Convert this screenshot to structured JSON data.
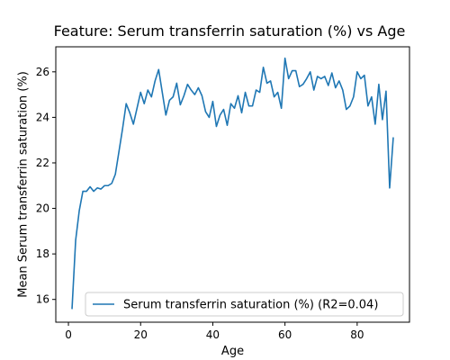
{
  "chart_data": {
    "type": "line",
    "title": "Feature: Serum transferrin saturation (%) vs Age",
    "xlabel": "Age",
    "ylabel": "Mean Serum transferrin saturation (%)",
    "xlim": [
      -3.5,
      94.5
    ],
    "ylim": [
      15.0,
      27.1
    ],
    "xticks": [
      0,
      20,
      40,
      60,
      80
    ],
    "xtick_labels": [
      "0",
      "20",
      "40",
      "60",
      "80"
    ],
    "yticks": [
      16,
      18,
      20,
      22,
      24,
      26
    ],
    "ytick_labels": [
      "16",
      "18",
      "20",
      "22",
      "24",
      "26"
    ],
    "grid": false,
    "legend_position": "lower-right",
    "series": [
      {
        "name": "Serum transferrin saturation (%) (R2=0.04)",
        "color": "#1f77b4",
        "x": [
          1,
          2,
          3,
          4,
          5,
          6,
          7,
          8,
          9,
          10,
          11,
          12,
          13,
          14,
          15,
          16,
          17,
          18,
          19,
          20,
          21,
          22,
          23,
          24,
          25,
          26,
          27,
          28,
          29,
          30,
          31,
          32,
          33,
          34,
          35,
          36,
          37,
          38,
          39,
          40,
          41,
          42,
          43,
          44,
          45,
          46,
          47,
          48,
          49,
          50,
          51,
          52,
          53,
          54,
          55,
          56,
          57,
          58,
          59,
          60,
          61,
          62,
          63,
          64,
          65,
          66,
          67,
          68,
          69,
          70,
          71,
          72,
          73,
          74,
          75,
          76,
          77,
          78,
          79,
          80,
          81,
          82,
          83,
          84,
          85,
          86,
          87,
          88,
          89,
          90
        ],
        "y": [
          15.6,
          18.6,
          19.9,
          20.75,
          20.75,
          20.95,
          20.75,
          20.9,
          20.85,
          21.0,
          21.0,
          21.1,
          21.5,
          22.5,
          23.5,
          24.6,
          24.2,
          23.7,
          24.4,
          25.1,
          24.6,
          25.2,
          24.9,
          25.6,
          26.1,
          25.1,
          24.1,
          24.75,
          24.9,
          25.5,
          24.55,
          24.95,
          25.45,
          25.2,
          25.0,
          25.3,
          24.95,
          24.25,
          24.0,
          24.7,
          23.6,
          24.1,
          24.35,
          23.65,
          24.6,
          24.4,
          24.95,
          24.2,
          25.1,
          24.5,
          24.5,
          25.2,
          25.1,
          26.2,
          25.5,
          25.6,
          24.9,
          25.1,
          24.4,
          26.6,
          25.7,
          26.05,
          26.05,
          25.35,
          25.45,
          25.7,
          26.0,
          25.2,
          25.8,
          25.7,
          25.8,
          25.4,
          25.95,
          25.3,
          25.6,
          25.2,
          24.35,
          24.5,
          24.9,
          26.0,
          25.7,
          25.85,
          24.5,
          24.9,
          23.7,
          25.45,
          23.9,
          25.15,
          20.9,
          23.1
        ]
      }
    ]
  }
}
